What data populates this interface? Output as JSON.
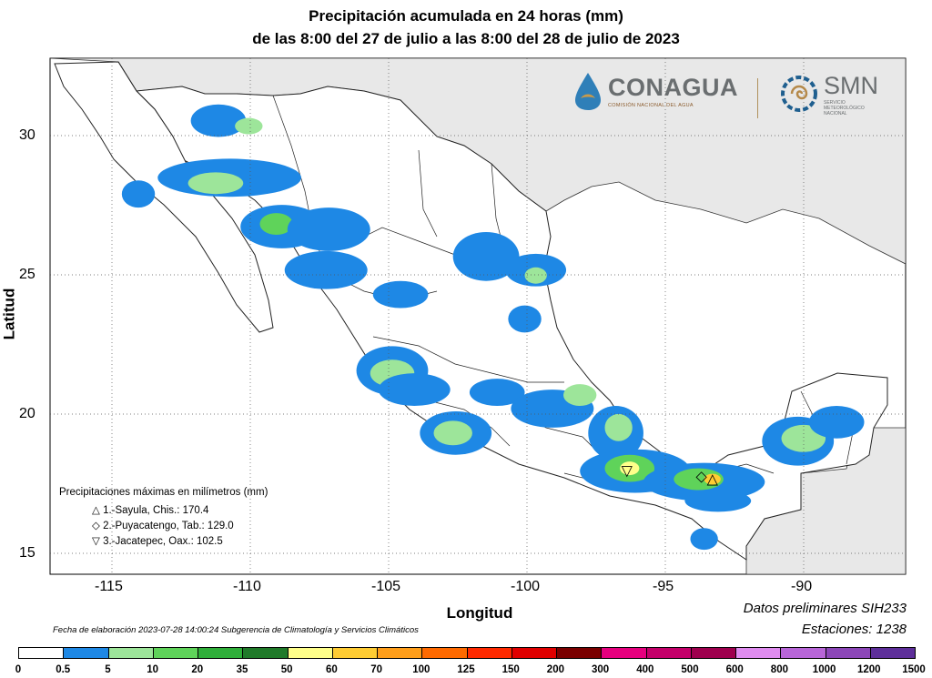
{
  "title_line1": "Precipitación acumulada en 24 horas (mm)",
  "title_line2": "de las 8:00 del 27 de julio a las 8:00 del 28 de julio de 2023",
  "axes": {
    "xlabel": "Longitud",
    "ylabel": "Latitud",
    "x_ticks": [
      "-115",
      "-110",
      "-105",
      "-100",
      "-95",
      "-90"
    ],
    "y_ticks": [
      "30",
      "25",
      "20",
      "15"
    ]
  },
  "map": {
    "lon_range": [
      -117,
      -86
    ],
    "lat_range": [
      14,
      33
    ],
    "grid": "dotted",
    "land_color": "#ffffff",
    "neighbor_color": "#e8e8e8",
    "water_color": "#ffffff"
  },
  "logos": {
    "conagua_name": "CONAGUA",
    "conagua_sub": "COMISIÓN NACIONAL DEL AGUA",
    "smn_name": "SMN",
    "smn_sub1": "SERVICIO",
    "smn_sub2": "METEOROLÓGICO",
    "smn_sub3": "NACIONAL"
  },
  "max_legend": {
    "title": "Precipitaciones máximas en milímetros (mm)",
    "items": [
      {
        "symbol": "△",
        "text": "1.-Sayula, Chis.: 170.4"
      },
      {
        "symbol": "◇",
        "text": "2.-Puyacatengo, Tab.: 129.0"
      },
      {
        "symbol": "▽",
        "text": "3.-Jacatepec, Oax.: 102.5"
      }
    ]
  },
  "notes": {
    "datos": "Datos preliminares SIH233",
    "estaciones": "Estaciones:  1238"
  },
  "fecha": "Fecha de elaboración 2023-07-28 14:00:24 Subgerencia de Climatología y Servicios Climáticos",
  "colorbar": {
    "labels": [
      "0",
      "0.5",
      "5",
      "10",
      "20",
      "35",
      "50",
      "60",
      "70",
      "100",
      "125",
      "150",
      "200",
      "300",
      "400",
      "500",
      "600",
      "800",
      "1000",
      "1200",
      "1500"
    ],
    "colors": [
      "#ffffff",
      "#1e88e5",
      "#9de59a",
      "#5fd35a",
      "#2fae3a",
      "#207a2a",
      "#ffff8a",
      "#ffcc33",
      "#ff9e1a",
      "#ff6a00",
      "#ff2a00",
      "#e00000",
      "#7a0000",
      "#e6007e",
      "#c4006a",
      "#9e004e",
      "#e08cf0",
      "#b866d8",
      "#8c47b8",
      "#5e2f9a"
    ]
  },
  "precip_areas": [
    {
      "lon": -110.9,
      "lat": 30.7,
      "rx": 1.0,
      "ry": 0.6,
      "level": 1
    },
    {
      "lon": -109.8,
      "lat": 30.5,
      "rx": 0.5,
      "ry": 0.3,
      "level": 2
    },
    {
      "lon": -110.5,
      "lat": 28.6,
      "rx": 2.6,
      "ry": 0.7,
      "level": 1
    },
    {
      "lon": -111.0,
      "lat": 28.4,
      "rx": 1.0,
      "ry": 0.4,
      "level": 2
    },
    {
      "lon": -108.6,
      "lat": 26.8,
      "rx": 1.5,
      "ry": 0.8,
      "level": 1
    },
    {
      "lon": -108.8,
      "lat": 26.9,
      "rx": 0.6,
      "ry": 0.4,
      "level": 3
    },
    {
      "lon": -106.9,
      "lat": 26.7,
      "rx": 1.5,
      "ry": 0.8,
      "level": 1
    },
    {
      "lon": -107.0,
      "lat": 25.2,
      "rx": 1.5,
      "ry": 0.7,
      "level": 1
    },
    {
      "lon": -113.8,
      "lat": 28.0,
      "rx": 0.6,
      "ry": 0.5,
      "level": 1
    },
    {
      "lon": -101.2,
      "lat": 25.7,
      "rx": 1.2,
      "ry": 0.9,
      "level": 1
    },
    {
      "lon": -99.4,
      "lat": 25.2,
      "rx": 1.1,
      "ry": 0.6,
      "level": 1
    },
    {
      "lon": -99.4,
      "lat": 25.0,
      "rx": 0.4,
      "ry": 0.3,
      "level": 2
    },
    {
      "lon": -104.3,
      "lat": 24.3,
      "rx": 1.0,
      "ry": 0.5,
      "level": 1
    },
    {
      "lon": -99.8,
      "lat": 23.4,
      "rx": 0.6,
      "ry": 0.5,
      "level": 1
    },
    {
      "lon": -104.6,
      "lat": 21.5,
      "rx": 1.3,
      "ry": 0.9,
      "level": 1
    },
    {
      "lon": -104.6,
      "lat": 21.4,
      "rx": 0.8,
      "ry": 0.5,
      "level": 2
    },
    {
      "lon": -103.8,
      "lat": 20.8,
      "rx": 1.3,
      "ry": 0.6,
      "level": 1
    },
    {
      "lon": -102.3,
      "lat": 19.2,
      "rx": 1.3,
      "ry": 0.8,
      "level": 1
    },
    {
      "lon": -102.4,
      "lat": 19.2,
      "rx": 0.7,
      "ry": 0.45,
      "level": 2
    },
    {
      "lon": -100.8,
      "lat": 20.7,
      "rx": 1.0,
      "ry": 0.5,
      "level": 1
    },
    {
      "lon": -98.8,
      "lat": 20.1,
      "rx": 1.5,
      "ry": 0.7,
      "level": 1
    },
    {
      "lon": -97.8,
      "lat": 20.6,
      "rx": 0.6,
      "ry": 0.4,
      "level": 2
    },
    {
      "lon": -96.5,
      "lat": 19.2,
      "rx": 1.0,
      "ry": 1.0,
      "level": 1
    },
    {
      "lon": -96.4,
      "lat": 19.4,
      "rx": 0.5,
      "ry": 0.5,
      "level": 2
    },
    {
      "lon": -95.8,
      "lat": 17.8,
      "rx": 2.0,
      "ry": 0.8,
      "level": 1
    },
    {
      "lon": -96.0,
      "lat": 17.9,
      "rx": 0.9,
      "ry": 0.5,
      "level": 3
    },
    {
      "lon": -96.0,
      "lat": 17.9,
      "rx": 0.35,
      "ry": 0.25,
      "level": 6
    },
    {
      "lon": -93.3,
      "lat": 17.4,
      "rx": 2.2,
      "ry": 0.7,
      "level": 1
    },
    {
      "lon": -93.5,
      "lat": 17.5,
      "rx": 0.9,
      "ry": 0.4,
      "level": 3
    },
    {
      "lon": -93.0,
      "lat": 17.5,
      "rx": 0.3,
      "ry": 0.2,
      "level": 7
    },
    {
      "lon": -92.8,
      "lat": 16.7,
      "rx": 1.2,
      "ry": 0.4,
      "level": 1
    },
    {
      "lon": -89.9,
      "lat": 18.9,
      "rx": 1.3,
      "ry": 0.9,
      "level": 1
    },
    {
      "lon": -89.7,
      "lat": 19.0,
      "rx": 0.8,
      "ry": 0.5,
      "level": 2
    },
    {
      "lon": -88.5,
      "lat": 19.6,
      "rx": 1.0,
      "ry": 0.6,
      "level": 1
    },
    {
      "lon": -93.3,
      "lat": 15.3,
      "rx": 0.5,
      "ry": 0.4,
      "level": 1
    }
  ],
  "markers": [
    {
      "symbol": "△",
      "lon": -93.0,
      "lat": 17.5
    },
    {
      "symbol": "◇",
      "lon": -93.4,
      "lat": 17.6
    },
    {
      "symbol": "▽",
      "lon": -96.1,
      "lat": 17.8
    }
  ]
}
